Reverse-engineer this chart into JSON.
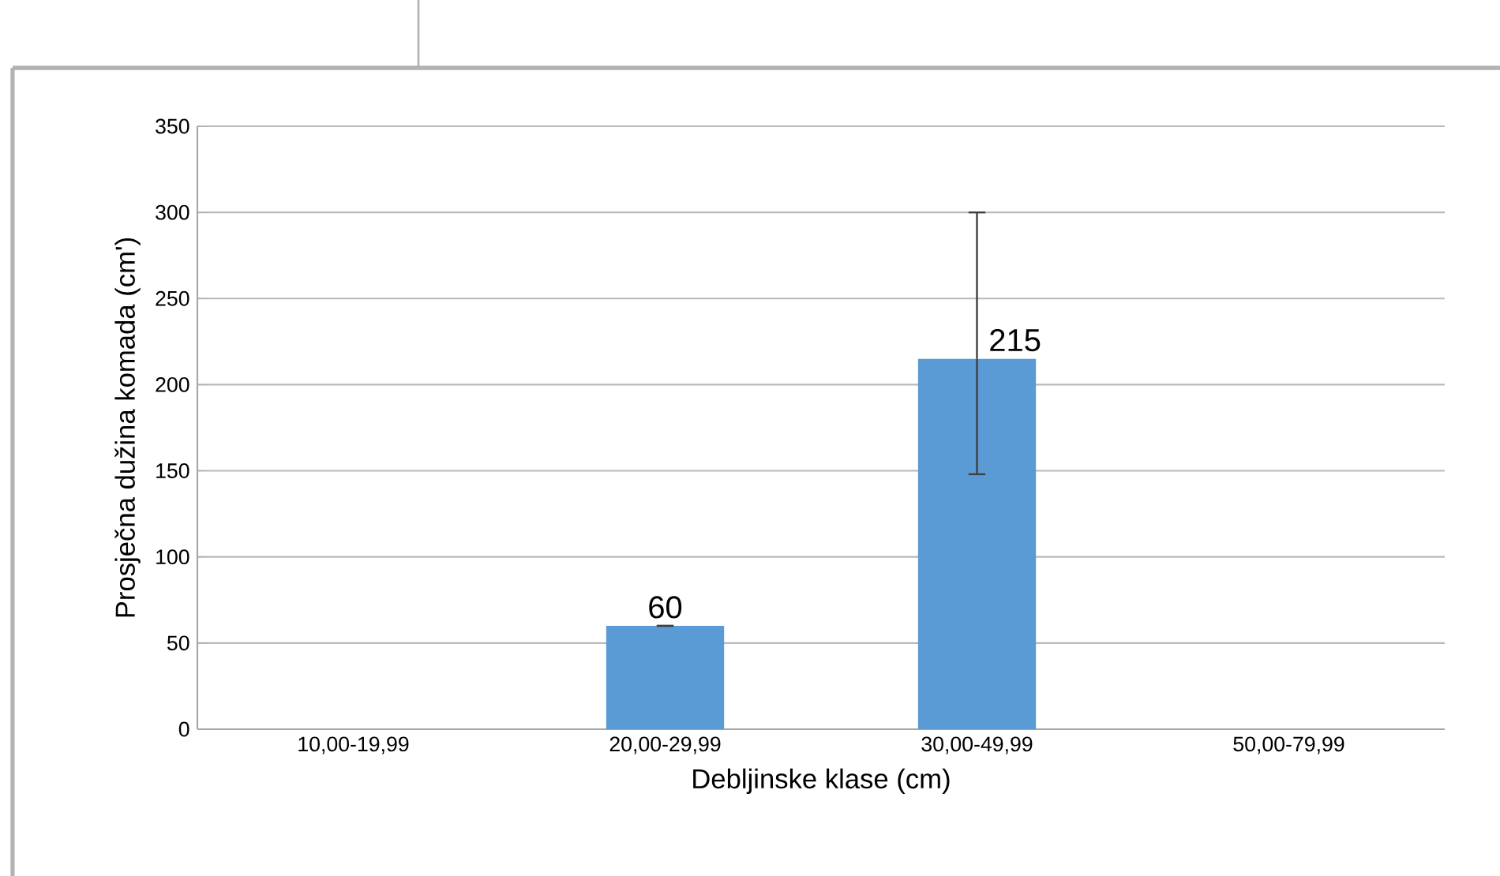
{
  "chart_data": {
    "type": "bar",
    "xlabel": "Debljinske klase (cm)",
    "ylabel": "Prosječna dužina  komada (cm')",
    "categories": [
      "10,00-19,99",
      "20,00-29,99",
      "30,00-49,99",
      "50,00-79,99"
    ],
    "values": [
      null,
      60,
      215,
      null
    ],
    "color": "#5b9bd5",
    "errors": [
      null,
      0,
      [
        148,
        300
      ],
      null
    ],
    "value_labels": [
      null,
      "60",
      "215",
      null
    ],
    "ylim": [
      0,
      350
    ],
    "yticks": [
      0,
      50,
      100,
      150,
      200,
      250,
      300,
      350
    ],
    "grid": "y"
  }
}
